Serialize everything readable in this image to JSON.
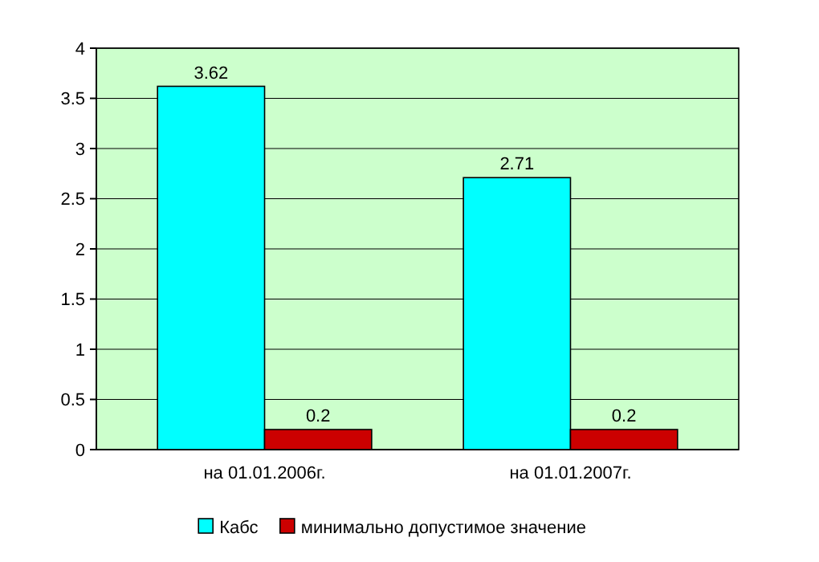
{
  "chart_data": {
    "type": "bar",
    "categories": [
      "на 01.01.2006г.",
      "на 01.01.2007г."
    ],
    "series": [
      {
        "name": "Кабс",
        "color": "#00ffff",
        "values": [
          3.62,
          2.71
        ]
      },
      {
        "name": "минимально допустимое значение",
        "color": "#cc0000",
        "values": [
          0.2,
          0.2
        ]
      }
    ],
    "ylim": [
      0,
      4
    ],
    "yticks": [
      0,
      0.5,
      1,
      1.5,
      2,
      2.5,
      3,
      3.5,
      4
    ],
    "grid": "y",
    "legend": "bottom",
    "data_labels": true
  }
}
